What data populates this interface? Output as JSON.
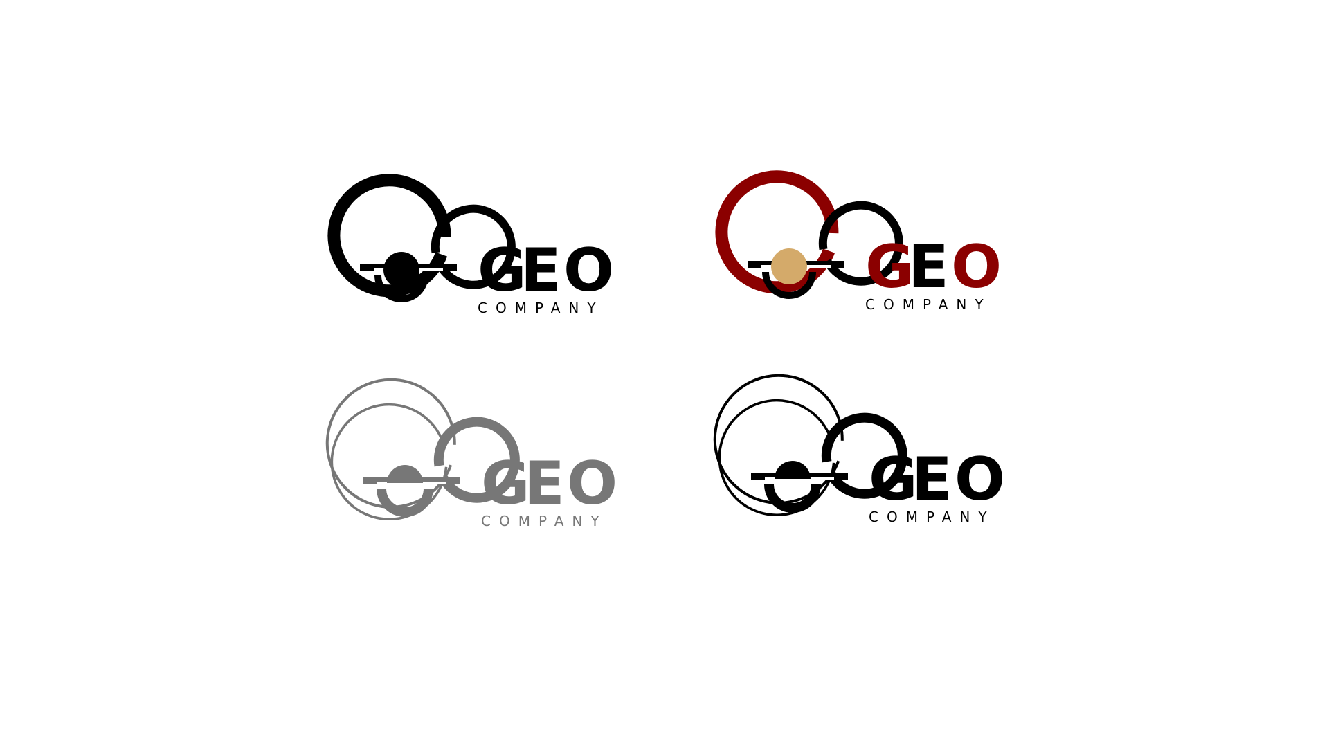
{
  "logos": [
    {
      "id": "black",
      "word": "GEO",
      "subtitle": "COMPANY",
      "colors": {
        "outer": "#000000",
        "inner": "#000000",
        "dot": "#000000",
        "word_g": "#000000",
        "word_e": "#000000",
        "word_o": "#000000",
        "subtitle": "#000000"
      },
      "style": "filled-dot"
    },
    {
      "id": "red-gold",
      "word": "GEO",
      "subtitle": "COMPANY",
      "colors": {
        "outer": "#8b0000",
        "inner": "#000000",
        "dot": "#d4aa6a",
        "word_g": "#8b0000",
        "word_e": "#000000",
        "word_o": "#8b0000",
        "subtitle": "#000000"
      },
      "style": "filled-dot"
    },
    {
      "id": "gray",
      "word": "GEO",
      "subtitle": "COMPANY",
      "colors": {
        "outer": "#777777",
        "inner": "#777777",
        "dot": "#777777",
        "word_g": "#777777",
        "word_e": "#777777",
        "word_o": "#777777",
        "subtitle": "#777777"
      },
      "style": "outline"
    },
    {
      "id": "black-outline",
      "word": "GEO",
      "subtitle": "COMPANY",
      "colors": {
        "outer": "#000000",
        "inner": "#000000",
        "dot": "#000000",
        "word_g": "#000000",
        "word_e": "#000000",
        "word_o": "#000000",
        "subtitle": "#000000"
      },
      "style": "outline"
    }
  ]
}
